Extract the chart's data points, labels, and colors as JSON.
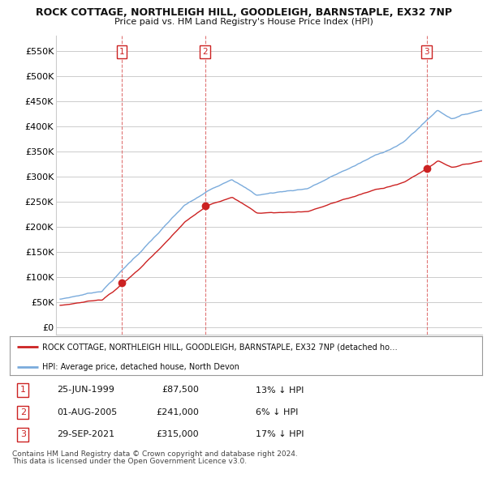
{
  "title1": "ROCK COTTAGE, NORTHLEIGH HILL, GOODLEIGH, BARNSTAPLE, EX32 7NP",
  "title2": "Price paid vs. HM Land Registry's House Price Index (HPI)",
  "yticks": [
    0,
    50000,
    100000,
    150000,
    200000,
    250000,
    300000,
    350000,
    400000,
    450000,
    500000,
    550000
  ],
  "ytick_labels": [
    "£0",
    "£50K",
    "£100K",
    "£150K",
    "£200K",
    "£250K",
    "£300K",
    "£350K",
    "£400K",
    "£450K",
    "£500K",
    "£550K"
  ],
  "xlim_start": 1994.7,
  "xlim_end": 2025.8,
  "ylim_bottom": -15000,
  "ylim_top": 580000,
  "hpi_color": "#7aabdc",
  "price_color": "#cc2222",
  "dashed_color": "#dd6666",
  "transactions": [
    {
      "num": 1,
      "date": "25-JUN-1999",
      "year": 1999.5,
      "price": 87500,
      "label": "£87,500",
      "hpi_pct": "13% ↓ HPI"
    },
    {
      "num": 2,
      "date": "01-AUG-2005",
      "year": 2005.58,
      "price": 241000,
      "label": "£241,000",
      "hpi_pct": "6% ↓ HPI"
    },
    {
      "num": 3,
      "date": "29-SEP-2021",
      "year": 2021.75,
      "price": 315000,
      "label": "£315,000",
      "hpi_pct": "17% ↓ HPI"
    }
  ],
  "legend_line1": "ROCK COTTAGE, NORTHLEIGH HILL, GOODLEIGH, BARNSTAPLE, EX32 7NP (detached ho…",
  "legend_line2": "HPI: Average price, detached house, North Devon",
  "footer1": "Contains HM Land Registry data © Crown copyright and database right 2024.",
  "footer2": "This data is licensed under the Open Government Licence v3.0.",
  "background_color": "#ffffff",
  "grid_color": "#cccccc"
}
